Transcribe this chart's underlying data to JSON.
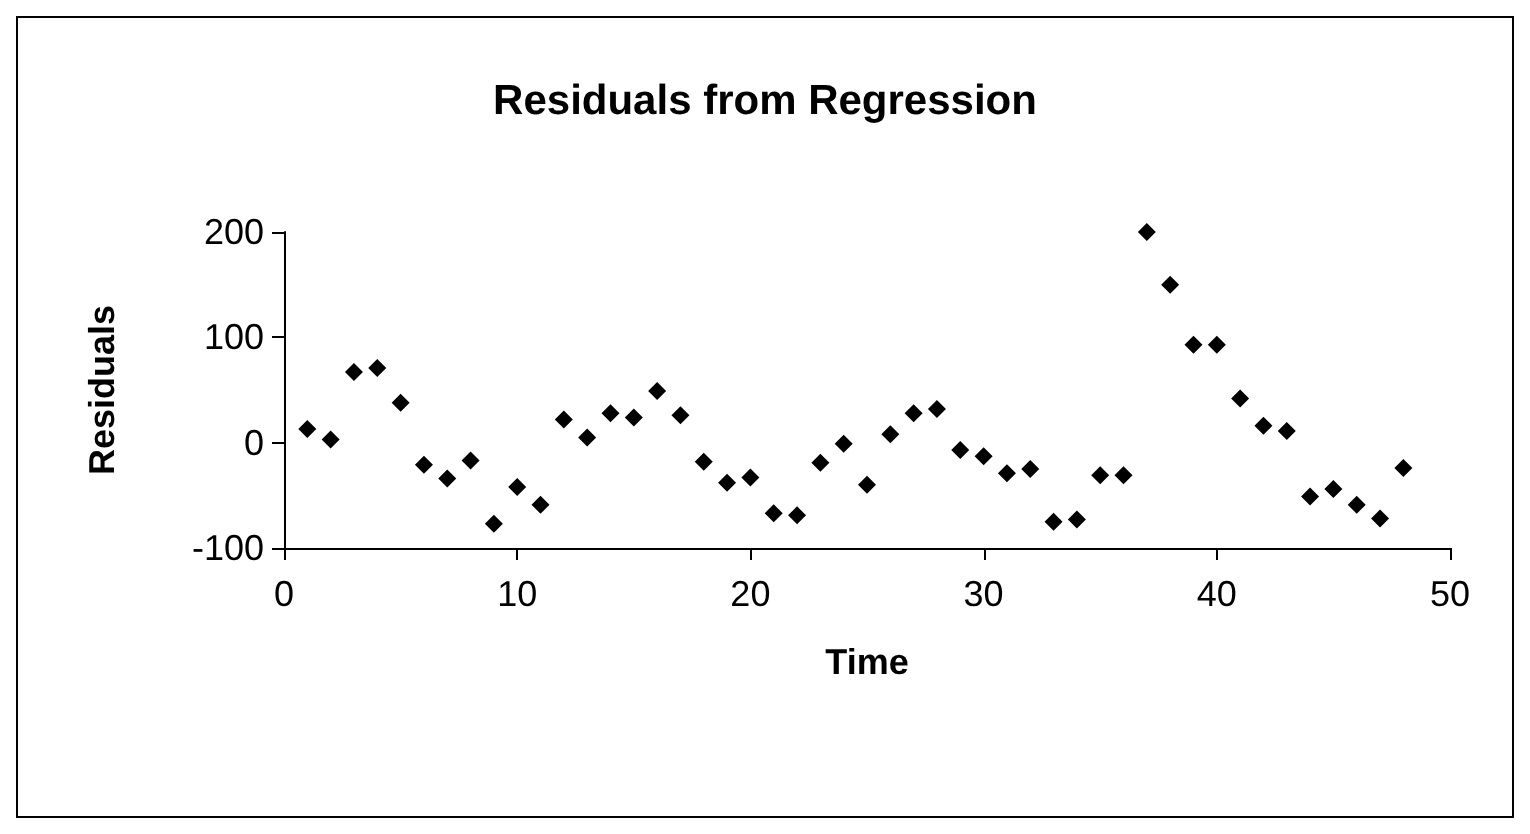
{
  "chart_data": {
    "type": "scatter",
    "title": "Residuals from Regression",
    "xlabel": "Time",
    "ylabel": "Residuals",
    "x": [
      1,
      2,
      3,
      4,
      5,
      6,
      7,
      8,
      9,
      10,
      11,
      12,
      13,
      14,
      15,
      16,
      17,
      18,
      19,
      20,
      21,
      22,
      23,
      24,
      25,
      26,
      27,
      28,
      29,
      30,
      31,
      32,
      33,
      34,
      35,
      36,
      37,
      38,
      39,
      40,
      41,
      42,
      43,
      44,
      45,
      46,
      47,
      48
    ],
    "series": [
      {
        "color": "#000000",
        "values": [
          13,
          3,
          67,
          71,
          38,
          -21,
          -34,
          -17,
          -77,
          -42,
          -59,
          22,
          5,
          28,
          24,
          49,
          26,
          -18,
          -38,
          -33,
          -67,
          -69,
          -19,
          -1,
          -40,
          8,
          28,
          32,
          -7,
          -13,
          -29,
          -25,
          -75,
          -73,
          -31,
          -31,
          200,
          150,
          93,
          93,
          42,
          16,
          11,
          -51,
          -44,
          -59,
          -72,
          -24
        ]
      }
    ],
    "xlim": [
      0,
      50
    ],
    "xticks": [
      0,
      10,
      20,
      30,
      40,
      50
    ],
    "ylim": [
      -100,
      200
    ],
    "yticks": [
      -100,
      0,
      100,
      200
    ],
    "grid": false,
    "marker": "diamond"
  }
}
